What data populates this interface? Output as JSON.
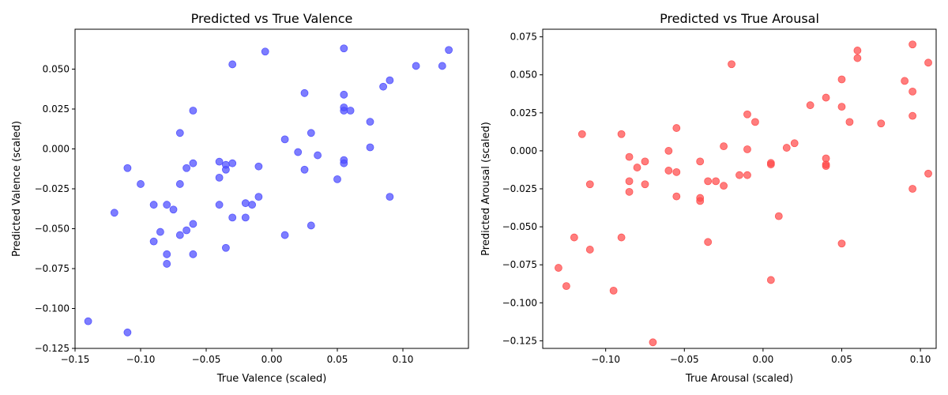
{
  "chart_data": [
    {
      "type": "scatter",
      "title": "Predicted vs True Valence",
      "xlabel": "True Valence (scaled)",
      "ylabel": "Predicted Valence (scaled)",
      "xlim": [
        -0.15,
        0.15
      ],
      "ylim": [
        -0.125,
        0.075
      ],
      "xticks": [
        -0.15,
        -0.1,
        -0.05,
        0.0,
        0.05,
        0.1
      ],
      "yticks": [
        -0.125,
        -0.1,
        -0.075,
        -0.05,
        -0.025,
        0.0,
        0.025,
        0.05
      ],
      "xtick_labels": [
        "−0.15",
        "−0.10",
        "−0.05",
        "0.00",
        "0.05",
        "0.10"
      ],
      "ytick_labels": [
        "−0.125",
        "−0.100",
        "−0.075",
        "−0.050",
        "−0.025",
        "0.000",
        "0.025",
        "0.050"
      ],
      "grid": false,
      "marker_color": "#4b4bff",
      "points": [
        [
          -0.005,
          0.061
        ],
        [
          -0.03,
          0.053
        ],
        [
          0.055,
          0.063
        ],
        [
          0.135,
          0.062
        ],
        [
          0.11,
          0.052
        ],
        [
          0.13,
          0.052
        ],
        [
          0.09,
          0.043
        ],
        [
          0.085,
          0.039
        ],
        [
          0.025,
          0.035
        ],
        [
          0.055,
          0.034
        ],
        [
          0.055,
          0.026
        ],
        [
          0.055,
          0.024
        ],
        [
          0.06,
          0.024
        ],
        [
          -0.06,
          0.024
        ],
        [
          0.075,
          0.017
        ],
        [
          -0.07,
          0.01
        ],
        [
          0.03,
          0.01
        ],
        [
          0.01,
          0.006
        ],
        [
          0.075,
          0.001
        ],
        [
          0.02,
          -0.002
        ],
        [
          0.035,
          -0.004
        ],
        [
          0.055,
          -0.007
        ],
        [
          0.055,
          -0.009
        ],
        [
          -0.04,
          -0.008
        ],
        [
          -0.03,
          -0.009
        ],
        [
          -0.06,
          -0.009
        ],
        [
          -0.035,
          -0.01
        ],
        [
          -0.035,
          -0.013
        ],
        [
          -0.01,
          -0.011
        ],
        [
          -0.065,
          -0.012
        ],
        [
          -0.11,
          -0.012
        ],
        [
          0.025,
          -0.013
        ],
        [
          -0.04,
          -0.018
        ],
        [
          0.05,
          -0.019
        ],
        [
          -0.07,
          -0.022
        ],
        [
          -0.1,
          -0.022
        ],
        [
          0.09,
          -0.03
        ],
        [
          -0.01,
          -0.03
        ],
        [
          -0.02,
          -0.034
        ],
        [
          -0.015,
          -0.035
        ],
        [
          -0.04,
          -0.035
        ],
        [
          -0.08,
          -0.035
        ],
        [
          -0.09,
          -0.035
        ],
        [
          -0.075,
          -0.038
        ],
        [
          -0.12,
          -0.04
        ],
        [
          -0.02,
          -0.043
        ],
        [
          -0.03,
          -0.043
        ],
        [
          -0.06,
          -0.047
        ],
        [
          0.03,
          -0.048
        ],
        [
          -0.065,
          -0.051
        ],
        [
          -0.085,
          -0.052
        ],
        [
          -0.07,
          -0.054
        ],
        [
          0.01,
          -0.054
        ],
        [
          -0.09,
          -0.058
        ],
        [
          -0.035,
          -0.062
        ],
        [
          -0.08,
          -0.066
        ],
        [
          -0.06,
          -0.066
        ],
        [
          -0.08,
          -0.072
        ],
        [
          -0.14,
          -0.108
        ],
        [
          -0.11,
          -0.115
        ]
      ]
    },
    {
      "type": "scatter",
      "title": "Predicted vs True Arousal",
      "xlabel": "True Arousal (scaled)",
      "ylabel": "Predicted Arousal (scaled)",
      "xlim": [
        -0.14,
        0.11
      ],
      "ylim": [
        -0.13,
        0.08
      ],
      "xticks": [
        -0.1,
        -0.05,
        0.0,
        0.05,
        0.1
      ],
      "yticks": [
        -0.125,
        -0.1,
        -0.075,
        -0.05,
        -0.025,
        0.0,
        0.025,
        0.05,
        0.075
      ],
      "xtick_labels": [
        "−0.10",
        "−0.05",
        "0.00",
        "0.05",
        "0.10"
      ],
      "ytick_labels": [
        "−0.125",
        "−0.100",
        "−0.075",
        "−0.050",
        "−0.025",
        "0.000",
        "0.025",
        "0.050",
        "0.075"
      ],
      "grid": false,
      "marker_color": "#ff4b4b",
      "points": [
        [
          0.095,
          0.07
        ],
        [
          0.06,
          0.066
        ],
        [
          0.06,
          0.061
        ],
        [
          0.105,
          0.058
        ],
        [
          -0.02,
          0.057
        ],
        [
          0.05,
          0.047
        ],
        [
          0.09,
          0.046
        ],
        [
          0.095,
          0.039
        ],
        [
          0.04,
          0.035
        ],
        [
          0.03,
          0.03
        ],
        [
          0.05,
          0.029
        ],
        [
          -0.01,
          0.024
        ],
        [
          0.095,
          0.023
        ],
        [
          0.055,
          0.019
        ],
        [
          -0.005,
          0.019
        ],
        [
          0.075,
          0.018
        ],
        [
          -0.055,
          0.015
        ],
        [
          -0.115,
          0.011
        ],
        [
          -0.09,
          0.011
        ],
        [
          0.02,
          0.005
        ],
        [
          -0.025,
          0.003
        ],
        [
          0.015,
          0.002
        ],
        [
          -0.01,
          0.001
        ],
        [
          -0.06,
          0.0
        ],
        [
          -0.085,
          -0.004
        ],
        [
          0.04,
          -0.005
        ],
        [
          -0.04,
          -0.007
        ],
        [
          -0.075,
          -0.007
        ],
        [
          0.005,
          -0.008
        ],
        [
          0.005,
          -0.009
        ],
        [
          0.04,
          -0.009
        ],
        [
          0.04,
          -0.01
        ],
        [
          -0.08,
          -0.011
        ],
        [
          -0.06,
          -0.013
        ],
        [
          -0.055,
          -0.014
        ],
        [
          0.105,
          -0.015
        ],
        [
          -0.015,
          -0.016
        ],
        [
          -0.01,
          -0.016
        ],
        [
          -0.035,
          -0.02
        ],
        [
          -0.03,
          -0.02
        ],
        [
          -0.085,
          -0.02
        ],
        [
          -0.075,
          -0.022
        ],
        [
          -0.11,
          -0.022
        ],
        [
          -0.025,
          -0.023
        ],
        [
          0.095,
          -0.025
        ],
        [
          -0.085,
          -0.027
        ],
        [
          -0.055,
          -0.03
        ],
        [
          -0.04,
          -0.031
        ],
        [
          -0.04,
          -0.033
        ],
        [
          0.01,
          -0.043
        ],
        [
          -0.12,
          -0.057
        ],
        [
          -0.09,
          -0.057
        ],
        [
          -0.035,
          -0.06
        ],
        [
          0.05,
          -0.061
        ],
        [
          -0.11,
          -0.065
        ],
        [
          -0.13,
          -0.077
        ],
        [
          0.005,
          -0.085
        ],
        [
          -0.125,
          -0.089
        ],
        [
          -0.095,
          -0.092
        ],
        [
          -0.07,
          -0.126
        ]
      ]
    }
  ]
}
